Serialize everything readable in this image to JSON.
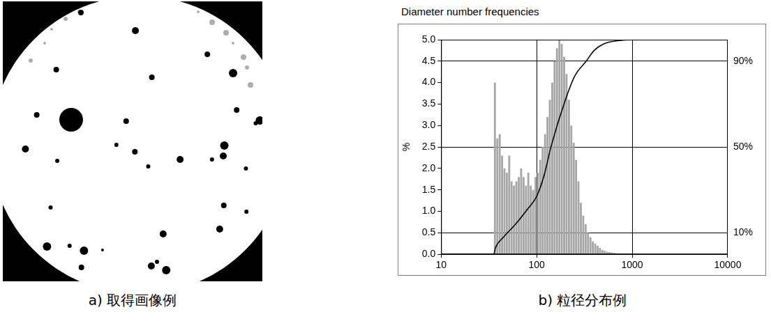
{
  "image_panel": {
    "caption": "a) 取得画像例"
  },
  "chart_data": {
    "type": "histogram",
    "title": "Diameter number frequencies",
    "caption": "b) 粒径分布例",
    "y_label": "%",
    "bins": [
      35.5,
      37.6,
      39.8,
      42.2,
      44.7,
      47.3,
      50.1,
      53.1,
      56.2,
      59.6,
      63.1,
      66.8,
      70.8,
      75.0,
      79.4,
      84.1,
      89.1,
      94.4,
      100,
      105.9,
      112.2,
      118.9,
      125.9,
      133.4,
      141.3,
      149.6,
      158.5,
      167.9,
      177.8,
      188.4,
      199.5,
      211.3,
      223.9,
      237.1,
      251.2,
      266.1,
      281.8,
      298.5,
      316.2,
      335.0,
      354.8,
      375.8,
      398.1,
      421.7,
      446.7,
      473.2,
      501.2,
      530.9,
      562.3,
      595.7,
      631.0,
      668.3,
      707.9,
      749.9,
      794.3,
      841.4,
      891.3
    ],
    "series": [
      {
        "type": "bar",
        "color": "#a6a6a6",
        "values": [
          4.0,
          2.7,
          2.8,
          2.3,
          2.0,
          1.9,
          2.3,
          1.7,
          1.6,
          1.7,
          1.8,
          2.0,
          1.8,
          1.6,
          1.9,
          1.6,
          1.5,
          1.8,
          1.9,
          2.2,
          2.5,
          2.8,
          3.2,
          3.6,
          4.0,
          4.5,
          4.8,
          5.0,
          4.9,
          4.6,
          4.2,
          3.6,
          3.0,
          2.6,
          2.2,
          1.7,
          1.2,
          0.9,
          0.7,
          0.5,
          0.4,
          0.3,
          0.25,
          0.2,
          0.15,
          0.1,
          0.08,
          0.06,
          0.05,
          0.04,
          0.03,
          0.02,
          0.02,
          0.01,
          0.01,
          0.01
        ]
      },
      {
        "type": "line",
        "axis": "y2",
        "color": "#000000",
        "line_style": "solid",
        "x": [
          10,
          35.5,
          37,
          45,
          60,
          80,
          100,
          120,
          141,
          200,
          250,
          330,
          400,
          500,
          700,
          1000,
          10000
        ],
        "values": [
          0,
          0,
          3,
          8,
          14,
          21,
          27,
          37,
          50,
          72,
          83,
          90,
          95,
          98,
          99.5,
          100,
          100
        ]
      }
    ],
    "log": "x",
    "xlim": [
      10,
      10000
    ],
    "xticks": [
      10,
      100,
      1000,
      10000
    ],
    "ylim": [
      0,
      5
    ],
    "yticks": [
      {
        "value": 0,
        "label": "0.0"
      },
      0.5,
      {
        "value": 1,
        "label": "1.0"
      },
      1.5,
      {
        "value": 2,
        "label": "2.0"
      },
      2.5,
      {
        "value": 3,
        "label": "3.0"
      },
      3.5,
      {
        "value": 4,
        "label": "4.0"
      },
      4.5,
      {
        "value": 5,
        "label": "5.0"
      }
    ],
    "y2lim": [
      0,
      100
    ],
    "y2ticks": [
      {
        "value": 10,
        "label": "10%"
      },
      {
        "value": 50,
        "label": "50%"
      },
      {
        "value": 90,
        "label": "90%"
      }
    ],
    "grid": true
  }
}
